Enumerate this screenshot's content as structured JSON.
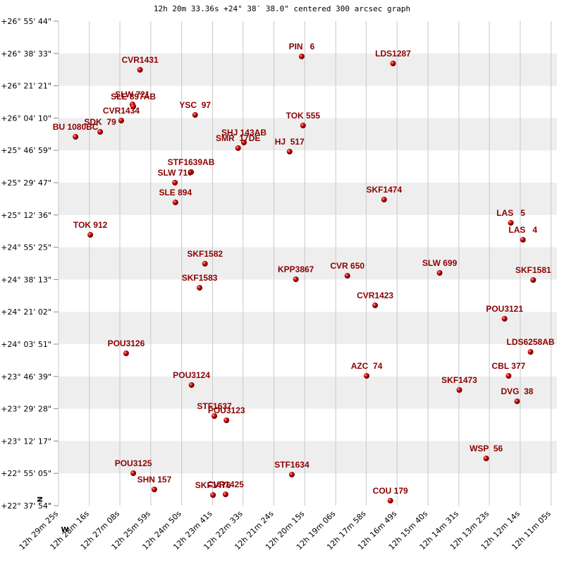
{
  "chart_data": {
    "type": "scatter",
    "title": "12h 20m 33.36s +24° 38′ 38.0\" centered 300 arcsec graph",
    "north_label": "N",
    "west_label": "W",
    "color": "#cc0000",
    "label_color": "#8b0000",
    "grid": true,
    "xlim": [
      1765,
      652
    ],
    "ylim": [
      2274,
      17744
    ],
    "xticks": [
      {
        "value": 1765,
        "label": "12h 29m 25s"
      },
      {
        "value": 1696,
        "label": "12h 28m 16s"
      },
      {
        "value": 1628,
        "label": "12h 27m 08s"
      },
      {
        "value": 1559,
        "label": "12h 25m 59s"
      },
      {
        "value": 1490,
        "label": "12h 24m 50s"
      },
      {
        "value": 1421,
        "label": "12h 23m 41s"
      },
      {
        "value": 1353,
        "label": "12h 22m 33s"
      },
      {
        "value": 1284,
        "label": "12h 21m 24s"
      },
      {
        "value": 1215,
        "label": "12h 20m 15s"
      },
      {
        "value": 1146,
        "label": "12h 19m 06s"
      },
      {
        "value": 1078,
        "label": "12h 17m 58s"
      },
      {
        "value": 1009,
        "label": "12h 16m 49s"
      },
      {
        "value": 940,
        "label": "12h 15m 40s"
      },
      {
        "value": 871,
        "label": "12h 14m 31s"
      },
      {
        "value": 803,
        "label": "12h 13m 23s"
      },
      {
        "value": 734,
        "label": "12h 12m 14s"
      },
      {
        "value": 665,
        "label": "12h 11m 05s"
      }
    ],
    "yticks": [
      {
        "value": 2274,
        "label": "+22° 37' 54\""
      },
      {
        "value": 3305,
        "label": "+22° 55' 05\""
      },
      {
        "value": 4337,
        "label": "+23° 12' 17\""
      },
      {
        "value": 5368,
        "label": "+23° 29' 28\""
      },
      {
        "value": 6399,
        "label": "+23° 46' 39\""
      },
      {
        "value": 7431,
        "label": "+24° 03' 51\""
      },
      {
        "value": 8462,
        "label": "+24° 21' 02\""
      },
      {
        "value": 9493,
        "label": "+24° 38' 13\""
      },
      {
        "value": 10525,
        "label": "+24° 55' 25\""
      },
      {
        "value": 11556,
        "label": "+25° 12' 36\""
      },
      {
        "value": 12587,
        "label": "+25° 29' 47\""
      },
      {
        "value": 13619,
        "label": "+25° 46' 59\""
      },
      {
        "value": 14650,
        "label": "+26° 04' 10\""
      },
      {
        "value": 15681,
        "label": "+26° 21' 21\""
      },
      {
        "value": 16713,
        "label": "+26° 38' 33\""
      },
      {
        "value": 17744,
        "label": "+26° 55' 44\""
      }
    ],
    "labels": [
      "CVR1431",
      "PIN   6",
      "LDS1287",
      "SLW 721",
      "SLE 897AB",
      "CVR1434",
      "SDK  79",
      "BU 1080BC",
      "YSC  97",
      "TOK 555",
      "SHJ 143AB",
      "SMR  17DE",
      "HJ  517",
      "STF1639AB",
      "SLW 710",
      "SLE 894",
      "SKF1474",
      "LAS   5",
      "LAS   4",
      "TOK 912",
      "SKF1582",
      "KPP3867",
      "CVR 650",
      "SLW 699",
      "SKF1581",
      "SKF1583",
      "CVR1423",
      "POU3121",
      "POU3126",
      "LDS6258AB",
      "AZC  74",
      "CBL 377",
      "POU3124",
      "SKF1473",
      "DVG  38",
      "STF1637",
      "POU3123",
      "WSP  56",
      "STF1634",
      "POU3125",
      "SHN 157",
      "SKF1476",
      "CVR1425",
      "COU 179"
    ],
    "x": [
      1583,
      1222,
      1018,
      1600,
      1598,
      1625,
      1672,
      1727,
      1460,
      1219,
      1351,
      1364,
      1249,
      1469,
      1505,
      1504,
      1038,
      755,
      728,
      1694,
      1438,
      1235,
      1120,
      914,
      705,
      1450,
      1058,
      769,
      1614,
      711,
      1077,
      760,
      1468,
      870,
      741,
      1417,
      1390,
      810,
      1244,
      1598,
      1551,
      1420,
      1392,
      1024
    ],
    "y": [
      16190,
      16618,
      16393,
      15087,
      15019,
      14569,
      14209,
      14051,
      14749,
      14411,
      13871,
      13691,
      13578,
      12925,
      12587,
      11957,
      12047,
      11304,
      10763,
      10921,
      9998,
      9502,
      9615,
      9705,
      9480,
      9232,
      8669,
      8241,
      7138,
      7183,
      6417,
      6417,
      6125,
      5967,
      5607,
      5134,
      4999,
      3783,
      3265,
      3310,
      2792,
      2612,
      2634,
      2432
    ]
  }
}
